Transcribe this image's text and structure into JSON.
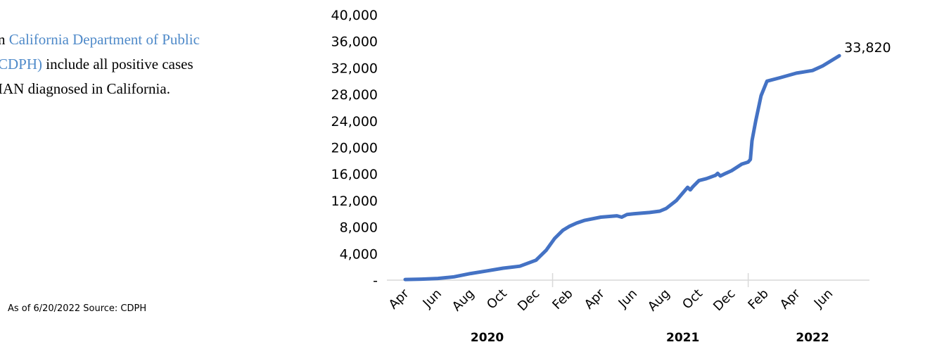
{
  "intro": {
    "line1_prefix": "n ",
    "line1_link": "California Department of Public",
    "line2_link": "CDPH)",
    "line2_rest": " include all positive cases",
    "line3": "IAN diagnosed in California."
  },
  "footnote": "As of 6/20/2022 Source: CDPH",
  "colors": {
    "line": "#4472c4",
    "link": "#4f8ac9",
    "axis": "#d9d9d9",
    "text": "#000000"
  },
  "chart_data": {
    "type": "line",
    "title": "",
    "xlabel": "",
    "ylabel": "",
    "ylim": [
      0,
      40000
    ],
    "y_ticks": [
      0,
      4000,
      8000,
      12000,
      16000,
      20000,
      24000,
      28000,
      32000,
      36000,
      40000
    ],
    "y_tick_labels": [
      "-",
      "4,000",
      "8,000",
      "12,000",
      "16,000",
      "20,000",
      "24,000",
      "28,000",
      "32,000",
      "36,000",
      "40,000"
    ],
    "x_range": [
      "2020-04-01",
      "2022-07-20"
    ],
    "x_ticks": [
      {
        "date": "2020-04-01",
        "label": "Apr"
      },
      {
        "date": "2020-06-01",
        "label": "Jun"
      },
      {
        "date": "2020-08-01",
        "label": "Aug"
      },
      {
        "date": "2020-10-01",
        "label": "Oct"
      },
      {
        "date": "2020-12-01",
        "label": "Dec"
      },
      {
        "date": "2021-02-01",
        "label": "Feb"
      },
      {
        "date": "2021-04-01",
        "label": "Apr"
      },
      {
        "date": "2021-06-01",
        "label": "Jun"
      },
      {
        "date": "2021-08-01",
        "label": "Aug"
      },
      {
        "date": "2021-10-01",
        "label": "Oct"
      },
      {
        "date": "2021-12-01",
        "label": "Dec"
      },
      {
        "date": "2022-02-01",
        "label": "Feb"
      },
      {
        "date": "2022-04-01",
        "label": "Apr"
      },
      {
        "date": "2022-06-01",
        "label": "Jun"
      }
    ],
    "year_labels": [
      {
        "date": "2020-09-01",
        "label": "2020"
      },
      {
        "date": "2021-09-01",
        "label": "2021"
      },
      {
        "date": "2022-05-01",
        "label": "2022"
      }
    ],
    "grid": false,
    "legend": "none",
    "end_label": "33,820",
    "series": [
      {
        "x": [
          "2020-04-01",
          "2020-05-01",
          "2020-06-01",
          "2020-07-01",
          "2020-08-01",
          "2020-09-01",
          "2020-10-01",
          "2020-11-01",
          "2020-12-01",
          "2020-12-20",
          "2021-01-05",
          "2021-01-20",
          "2021-02-01",
          "2021-02-15",
          "2021-03-01",
          "2021-04-01",
          "2021-05-01",
          "2021-05-10",
          "2021-05-20",
          "2021-06-01",
          "2021-07-01",
          "2021-07-20",
          "2021-08-01",
          "2021-08-20",
          "2021-09-10",
          "2021-09-15",
          "2021-09-20",
          "2021-10-01",
          "2021-10-15",
          "2021-11-01",
          "2021-11-05",
          "2021-11-10",
          "2021-11-20",
          "2021-12-01",
          "2021-12-20",
          "2022-01-01",
          "2022-01-05",
          "2022-01-08",
          "2022-01-15",
          "2022-01-25",
          "2022-02-05",
          "2022-03-01",
          "2022-04-01",
          "2022-05-01",
          "2022-05-20",
          "2022-06-20"
        ],
        "y": [
          100,
          150,
          250,
          500,
          1000,
          1400,
          1800,
          2100,
          3000,
          4500,
          6300,
          7500,
          8100,
          8600,
          9000,
          9500,
          9700,
          9500,
          9900,
          10000,
          10200,
          10400,
          10800,
          12000,
          14000,
          13600,
          14100,
          15000,
          15300,
          15800,
          16100,
          15700,
          16100,
          16500,
          17500,
          17800,
          18200,
          21000,
          24000,
          27800,
          30000,
          30500,
          31200,
          31600,
          32300,
          33820
        ]
      }
    ]
  }
}
